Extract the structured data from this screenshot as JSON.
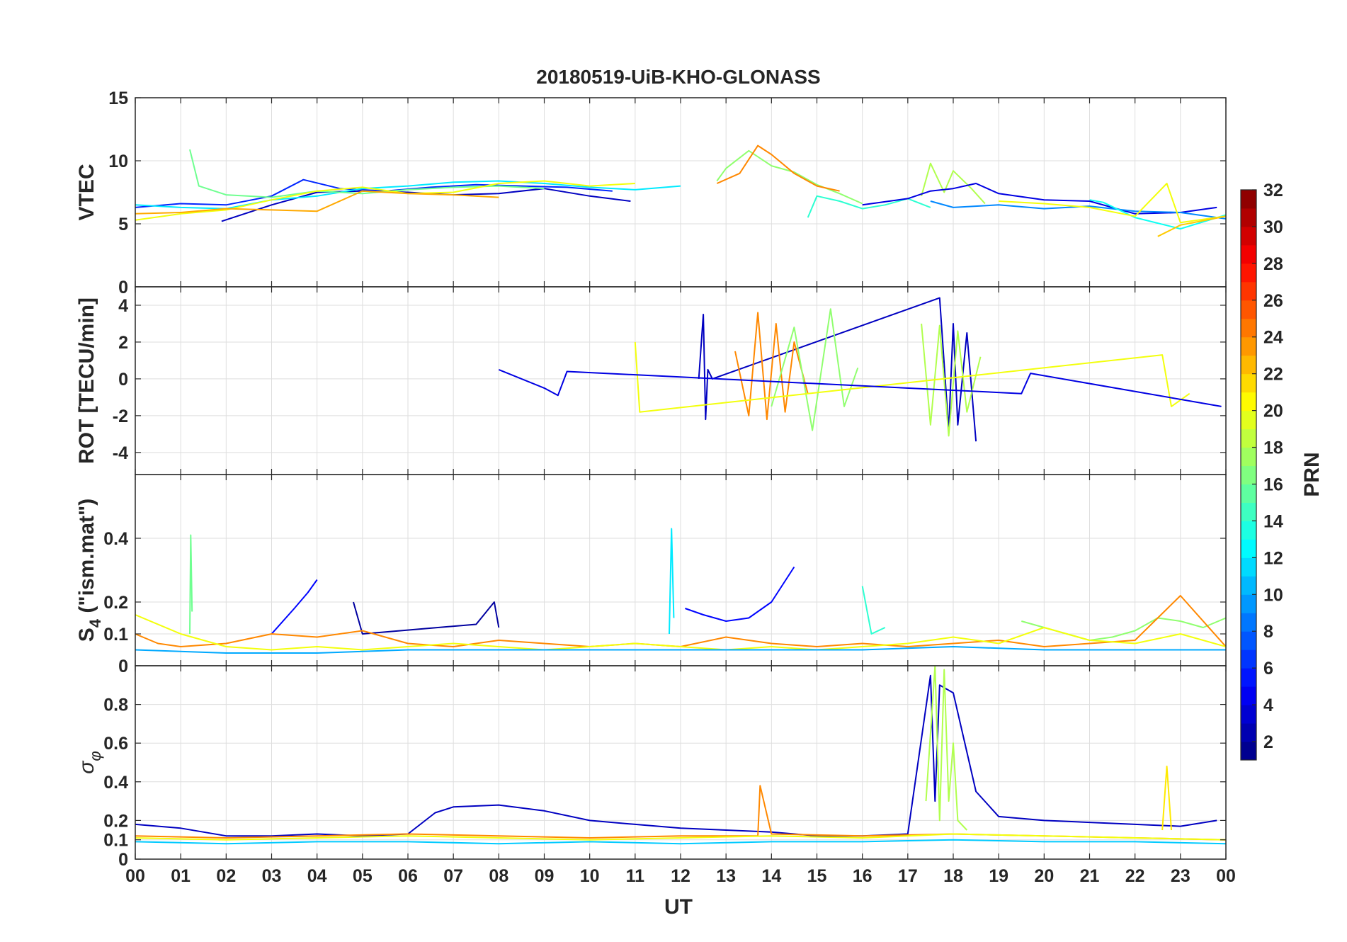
{
  "title": "20180519-UiB-KHO-GLONASS",
  "x_axis": {
    "label": "UT",
    "ticks": [
      "00",
      "01",
      "02",
      "03",
      "04",
      "05",
      "06",
      "07",
      "08",
      "09",
      "10",
      "11",
      "12",
      "13",
      "14",
      "15",
      "16",
      "17",
      "18",
      "19",
      "20",
      "21",
      "22",
      "23",
      "00"
    ]
  },
  "colorbar": {
    "label": "PRN",
    "ticks": [
      "2",
      "4",
      "6",
      "8",
      "10",
      "12",
      "14",
      "16",
      "18",
      "20",
      "22",
      "24",
      "26",
      "28",
      "30",
      "32"
    ],
    "tick_values": [
      2,
      4,
      6,
      8,
      10,
      12,
      14,
      16,
      18,
      20,
      22,
      24,
      26,
      28,
      30,
      32
    ],
    "range": [
      1,
      32
    ],
    "colormap": "jet"
  },
  "chart_data": [
    {
      "type": "line",
      "panel": "VTEC",
      "ylabel": "VTEC",
      "xlim": [
        0,
        24
      ],
      "ylim": [
        0,
        15
      ],
      "yticks": [
        0,
        5,
        10,
        15
      ],
      "grid": true,
      "series": [
        {
          "prn": 3,
          "x": [
            1.9,
            3,
            4,
            5,
            6,
            7,
            8,
            9,
            10,
            10.9
          ],
          "y": [
            5.2,
            6.5,
            7.5,
            7.6,
            7.5,
            7.3,
            7.4,
            7.8,
            7.2,
            6.8
          ]
        },
        {
          "prn": 6,
          "x": [
            0,
            1,
            2,
            3,
            3.7,
            4.5,
            5.5,
            6.5,
            7.5,
            8.5,
            9.5,
            10.5
          ],
          "y": [
            6.3,
            6.6,
            6.5,
            7.2,
            8.5,
            7.8,
            7.6,
            7.9,
            8.1,
            8.0,
            7.9,
            7.6
          ]
        },
        {
          "prn": 12,
          "x": [
            0,
            1,
            2,
            3,
            4,
            5,
            6,
            7,
            8,
            9,
            10,
            11,
            12
          ],
          "y": [
            6.5,
            6.3,
            6.2,
            6.9,
            7.2,
            7.8,
            8.0,
            8.3,
            8.4,
            8.2,
            7.9,
            7.7,
            8.0
          ]
        },
        {
          "prn": 16,
          "x": [
            1.2,
            1.4,
            2,
            3,
            4,
            5,
            6,
            7,
            8,
            9
          ],
          "y": [
            10.9,
            8.0,
            7.3,
            7.1,
            7.6,
            7.4,
            7.7,
            7.9,
            8.0,
            7.8
          ]
        },
        {
          "prn": 20,
          "x": [
            0,
            1,
            2,
            3,
            4,
            5,
            6,
            7,
            8,
            9,
            10,
            11
          ],
          "y": [
            5.3,
            5.8,
            6.1,
            6.9,
            7.6,
            7.9,
            7.4,
            7.5,
            8.2,
            8.4,
            8.0,
            8.2
          ]
        },
        {
          "prn": 23,
          "x": [
            0,
            1,
            2,
            3,
            4,
            5,
            6,
            7,
            8
          ],
          "y": [
            5.8,
            5.9,
            6.2,
            6.1,
            6.0,
            7.6,
            7.4,
            7.3,
            7.1
          ]
        },
        {
          "prn": 17,
          "x": [
            12.8,
            13,
            13.5,
            14,
            14.5,
            15,
            15.5,
            16
          ],
          "y": [
            8.4,
            9.4,
            10.8,
            9.6,
            9.1,
            8.1,
            7.4,
            6.6
          ]
        },
        {
          "prn": 24,
          "x": [
            12.8,
            13.3,
            13.7,
            14,
            14.5,
            15,
            15.5
          ],
          "y": [
            8.2,
            9.0,
            11.2,
            10.5,
            9.0,
            8.0,
            7.6
          ]
        },
        {
          "prn": 14,
          "x": [
            14.8,
            15,
            15.5,
            16,
            16.5,
            17,
            17.5
          ],
          "y": [
            5.5,
            7.2,
            6.8,
            6.2,
            6.5,
            7.0,
            6.3
          ]
        },
        {
          "prn": 18,
          "x": [
            17.3,
            17.5,
            17.8,
            18,
            18.4,
            18.7
          ],
          "y": [
            7.2,
            9.8,
            7.5,
            9.2,
            7.8,
            6.6
          ]
        },
        {
          "prn": 4,
          "x": [
            16,
            17,
            17.5,
            18,
            18.5,
            19,
            20,
            21,
            22,
            23,
            23.8
          ],
          "y": [
            6.5,
            7.0,
            7.6,
            7.8,
            8.2,
            7.4,
            6.9,
            6.8,
            5.8,
            5.9,
            6.3
          ]
        },
        {
          "prn": 9,
          "x": [
            17.5,
            18,
            19,
            20,
            21,
            22,
            23,
            24
          ],
          "y": [
            6.8,
            6.3,
            6.5,
            6.2,
            6.4,
            6.0,
            5.9,
            5.4
          ]
        },
        {
          "prn": 13,
          "x": [
            21,
            21.3,
            22,
            23,
            24
          ],
          "y": [
            6.9,
            6.7,
            5.5,
            4.6,
            5.7
          ]
        },
        {
          "prn": 20,
          "x": [
            19,
            20,
            21,
            22,
            22.7,
            23,
            24
          ],
          "y": [
            6.8,
            6.6,
            6.3,
            5.6,
            8.2,
            5.1,
            5.6
          ]
        },
        {
          "prn": 22,
          "x": [
            22.5,
            23,
            24
          ],
          "y": [
            4.0,
            4.9,
            5.6
          ]
        }
      ]
    },
    {
      "type": "line",
      "panel": "ROT",
      "ylabel": "ROT [TECU/min]",
      "xlim": [
        0,
        24
      ],
      "ylim": [
        -5.2,
        5
      ],
      "yticks": [
        -4,
        -2,
        0,
        2,
        4
      ],
      "grid": true,
      "series": [
        {
          "prn": 3,
          "x": [
            12.4,
            12.5,
            12.55,
            12.6,
            12.7,
            17.7,
            17.9,
            18.0,
            18.1,
            18.3,
            18.5
          ],
          "y": [
            0,
            3.5,
            -2.2,
            0.5,
            0,
            4.4,
            -2.8,
            3.0,
            -2.5,
            2.5,
            -3.4
          ]
        },
        {
          "prn": 24,
          "x": [
            13.2,
            13.5,
            13.7,
            13.9,
            14.1,
            14.3,
            14.5,
            14.8
          ],
          "y": [
            1.5,
            -2.0,
            3.6,
            -2.2,
            3.0,
            -1.8,
            2.0,
            -0.8
          ]
        },
        {
          "prn": 17,
          "x": [
            14,
            14.5,
            14.9,
            15.3,
            15.6,
            15.9
          ],
          "y": [
            -1.5,
            2.8,
            -2.8,
            3.8,
            -1.5,
            0.6
          ]
        },
        {
          "prn": 18,
          "x": [
            17.3,
            17.5,
            17.7,
            17.9,
            18.1,
            18.3,
            18.6
          ],
          "y": [
            3.0,
            -2.5,
            2.9,
            -3.1,
            2.6,
            -1.8,
            1.2
          ]
        },
        {
          "prn": 20,
          "x": [
            11,
            11.1,
            22.6,
            22.8,
            23.2
          ],
          "y": [
            2.0,
            -1.8,
            1.3,
            -1.5,
            -0.8
          ]
        },
        {
          "prn": 4,
          "x": [
            8,
            9,
            9.3,
            9.5,
            19.5,
            19.7,
            23.9
          ],
          "y": [
            0.5,
            -0.5,
            -0.9,
            0.4,
            -0.8,
            0.3,
            -1.5
          ]
        }
      ]
    },
    {
      "type": "line",
      "panel": "S4",
      "ylabel": "S4 (\"ism.mat\")",
      "ylabel_base": "S",
      "ylabel_sub": "4",
      "ylabel_rest": " (\"ism.mat\")",
      "xlim": [
        0,
        24
      ],
      "ylim": [
        0,
        0.6
      ],
      "yticks": [
        0,
        0.1,
        0.2,
        0.4
      ],
      "grid": true,
      "series": [
        {
          "prn": 16,
          "x": [
            1.2,
            1.22,
            1.25
          ],
          "y": [
            0.1,
            0.41,
            0.17
          ]
        },
        {
          "prn": 12,
          "x": [
            11.75,
            11.8,
            11.85
          ],
          "y": [
            0.1,
            0.43,
            0.15
          ]
        },
        {
          "prn": 5,
          "x": [
            3,
            3.5,
            3.8,
            4.0
          ],
          "y": [
            0.1,
            0.18,
            0.23,
            0.27
          ]
        },
        {
          "prn": 5,
          "x": [
            12.1,
            12.5,
            13.0,
            13.5,
            14.0,
            14.5
          ],
          "y": [
            0.18,
            0.16,
            0.14,
            0.15,
            0.2,
            0.31
          ]
        },
        {
          "prn": 17,
          "x": [
            19.5,
            20,
            20.5,
            21,
            21.5,
            22,
            22.5,
            23,
            23.5,
            24
          ],
          "y": [
            0.14,
            0.12,
            0.1,
            0.08,
            0.09,
            0.11,
            0.15,
            0.14,
            0.12,
            0.15
          ]
        },
        {
          "prn": 2,
          "x": [
            4.8,
            5.0,
            7.5,
            7.9,
            8.0
          ],
          "y": [
            0.2,
            0.1,
            0.13,
            0.2,
            0.12
          ]
        },
        {
          "prn": 24,
          "x": [
            0,
            0.5,
            1,
            2,
            3,
            4,
            5,
            6,
            7,
            8,
            9,
            10,
            11,
            12,
            13,
            14,
            15,
            16,
            17,
            18,
            19,
            20,
            21,
            22,
            23,
            24
          ],
          "y": [
            0.1,
            0.07,
            0.06,
            0.07,
            0.1,
            0.09,
            0.11,
            0.07,
            0.06,
            0.08,
            0.07,
            0.06,
            0.07,
            0.06,
            0.09,
            0.07,
            0.06,
            0.07,
            0.06,
            0.07,
            0.08,
            0.06,
            0.07,
            0.08,
            0.22,
            0.06
          ]
        },
        {
          "prn": 20,
          "x": [
            0,
            1,
            2,
            3,
            4,
            5,
            6,
            7,
            8,
            9,
            10,
            11,
            12,
            13,
            14,
            15,
            16,
            17,
            18,
            19,
            20,
            21,
            22,
            23,
            24
          ],
          "y": [
            0.16,
            0.1,
            0.06,
            0.05,
            0.06,
            0.05,
            0.06,
            0.07,
            0.06,
            0.05,
            0.06,
            0.07,
            0.06,
            0.05,
            0.06,
            0.05,
            0.06,
            0.07,
            0.09,
            0.07,
            0.12,
            0.08,
            0.07,
            0.1,
            0.06
          ]
        },
        {
          "prn": 10,
          "x": [
            0,
            2,
            4,
            6,
            8,
            10,
            12,
            14,
            16,
            18,
            20,
            22,
            24
          ],
          "y": [
            0.05,
            0.04,
            0.04,
            0.05,
            0.05,
            0.05,
            0.05,
            0.05,
            0.05,
            0.06,
            0.05,
            0.05,
            0.05
          ]
        },
        {
          "prn": 14,
          "x": [
            16,
            16.2,
            16.5
          ],
          "y": [
            0.25,
            0.1,
            0.12
          ]
        }
      ]
    },
    {
      "type": "line",
      "panel": "sigma_phi",
      "ylabel": "σ φ",
      "ylabel_base": "σ",
      "ylabel_sub": "φ",
      "xlim": [
        0,
        24
      ],
      "ylim": [
        0,
        1
      ],
      "yticks": [
        0,
        0.1,
        0.2,
        0.4,
        0.6,
        0.8
      ],
      "grid": true,
      "series": [
        {
          "prn": 3,
          "x": [
            0,
            1,
            2,
            3,
            4,
            5,
            6,
            6.6,
            7,
            8,
            9,
            10,
            11,
            12,
            13,
            14,
            15,
            16,
            17,
            17.5,
            17.6,
            17.7,
            18,
            18.5,
            19,
            20,
            21,
            22,
            23,
            23.8
          ],
          "y": [
            0.18,
            0.16,
            0.12,
            0.12,
            0.13,
            0.12,
            0.13,
            0.24,
            0.27,
            0.28,
            0.25,
            0.2,
            0.18,
            0.16,
            0.15,
            0.14,
            0.12,
            0.12,
            0.13,
            0.95,
            0.3,
            0.9,
            0.86,
            0.35,
            0.22,
            0.2,
            0.19,
            0.18,
            0.17,
            0.2
          ]
        },
        {
          "prn": 18,
          "x": [
            17.4,
            17.6,
            17.7,
            17.8,
            17.9,
            18.0,
            18.1,
            18.3
          ],
          "y": [
            0.3,
            1.0,
            0.2,
            0.98,
            0.3,
            0.6,
            0.2,
            0.15
          ]
        },
        {
          "prn": 21,
          "x": [
            22.6,
            22.7,
            22.8
          ],
          "y": [
            0.15,
            0.48,
            0.15
          ]
        },
        {
          "prn": 24,
          "x": [
            0,
            2,
            4,
            6,
            8,
            10,
            12,
            13.7,
            13.75,
            14,
            16,
            18,
            20,
            22,
            24
          ],
          "y": [
            0.12,
            0.11,
            0.12,
            0.13,
            0.12,
            0.11,
            0.12,
            0.12,
            0.38,
            0.13,
            0.12,
            0.13,
            0.12,
            0.11,
            0.1
          ]
        },
        {
          "prn": 20,
          "x": [
            0,
            2,
            4,
            6,
            8,
            10,
            12,
            14,
            16,
            18,
            20,
            22,
            24
          ],
          "y": [
            0.11,
            0.1,
            0.11,
            0.12,
            0.11,
            0.1,
            0.11,
            0.12,
            0.11,
            0.13,
            0.12,
            0.11,
            0.1
          ]
        },
        {
          "prn": 11,
          "x": [
            0,
            2,
            4,
            6,
            8,
            10,
            12,
            14,
            16,
            18,
            20,
            22,
            24
          ],
          "y": [
            0.09,
            0.08,
            0.09,
            0.09,
            0.08,
            0.09,
            0.08,
            0.09,
            0.09,
            0.1,
            0.09,
            0.09,
            0.08
          ]
        }
      ]
    }
  ]
}
